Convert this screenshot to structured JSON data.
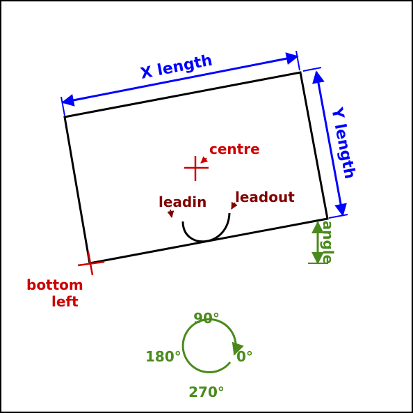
{
  "labels": {
    "x_length": "X length",
    "y_length": "Y length",
    "centre": "centre",
    "leadin": "leadin",
    "leadout": "leadout",
    "angle": "angle",
    "bottom": "bottom",
    "left": "left"
  },
  "angle_dial": {
    "deg_90": "90°",
    "deg_180": "180°",
    "deg_0": "0°",
    "deg_270": "270°"
  },
  "colors": {
    "frame": "#000000",
    "rectangle": "#000000",
    "dimension": "#0000ff",
    "point_marker": "#cc0000",
    "lead": "#800000",
    "angle": "#4a8a1c"
  }
}
